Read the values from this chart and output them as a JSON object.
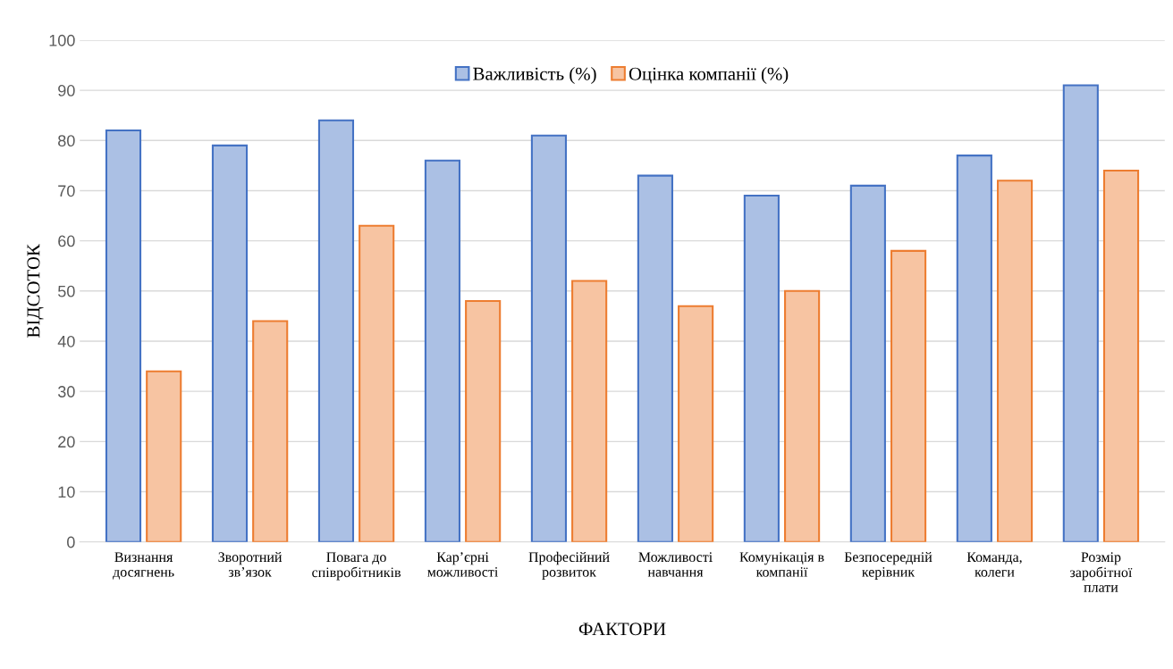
{
  "chart_data": {
    "type": "bar",
    "categories": [
      "Визнання\nдосягнень",
      "Зворотний\nзв’язок",
      "Повага до\nспівробітників",
      "Кар’єрні\nможливості",
      "Професійний\nрозвиток",
      "Можливості\nнавчання",
      "Комунікація в\nкомпанії",
      "Безпосередній\nкерівник",
      "Команда,\nколеги",
      "Розмір\nзаробітної\nплати"
    ],
    "series": [
      {
        "name": "Важливість (%)",
        "color": "#4472c4",
        "values": [
          82,
          79,
          84,
          76,
          81,
          73,
          69,
          71,
          77,
          91
        ]
      },
      {
        "name": "Оцінка компанії (%)",
        "color": "#ed7d31",
        "values": [
          34,
          44,
          63,
          48,
          52,
          47,
          50,
          58,
          72,
          74
        ]
      }
    ],
    "xlabel": "ФАКТОРИ",
    "ylabel": "ВІДСОТОК",
    "ylim": [
      0,
      100
    ],
    "yticks": [
      0,
      10,
      20,
      30,
      40,
      50,
      60,
      70,
      80,
      90,
      100
    ],
    "grid": "y",
    "legend": "top"
  }
}
